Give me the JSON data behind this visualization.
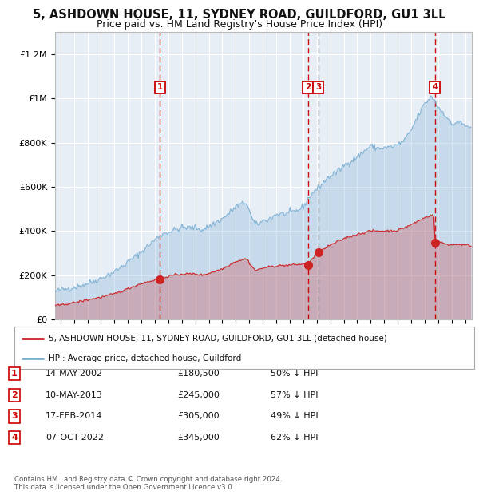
{
  "title": "5, ASHDOWN HOUSE, 11, SYDNEY ROAD, GUILDFORD, GU1 3LL",
  "subtitle": "Price paid vs. HM Land Registry's House Price Index (HPI)",
  "hpi_label": "HPI: Average price, detached house, Guildford",
  "price_label": "5, ASHDOWN HOUSE, 11, SYDNEY ROAD, GUILDFORD, GU1 3LL (detached house)",
  "hpi_color": "#7bafd4",
  "price_color": "#cc2222",
  "fig_bg": "#ffffff",
  "plot_bg": "#e8eef5",
  "grid_color": "#ffffff",
  "vline_color_red": "#cc0000",
  "vline_color_gray": "#888888",
  "transactions": [
    {
      "num": 1,
      "date_label": "14-MAY-2002",
      "date_val": 2002.37,
      "price": 180500,
      "pct": "50%",
      "vline": "red"
    },
    {
      "num": 2,
      "date_label": "10-MAY-2013",
      "date_val": 2013.36,
      "price": 245000,
      "pct": "57%",
      "vline": "red"
    },
    {
      "num": 3,
      "date_label": "17-FEB-2014",
      "date_val": 2014.13,
      "price": 305000,
      "pct": "49%",
      "vline": "gray"
    },
    {
      "num": 4,
      "date_label": "07-OCT-2022",
      "date_val": 2022.77,
      "price": 345000,
      "pct": "62%",
      "vline": "red"
    }
  ],
  "ylim": [
    0,
    1300000
  ],
  "xlim_start": 1994.6,
  "xlim_end": 2025.5,
  "copyright_text": "Contains HM Land Registry data © Crown copyright and database right 2024.\nThis data is licensed under the Open Government Licence v3.0.",
  "title_fontsize": 10.5,
  "subtitle_fontsize": 9,
  "marker_size": 7
}
